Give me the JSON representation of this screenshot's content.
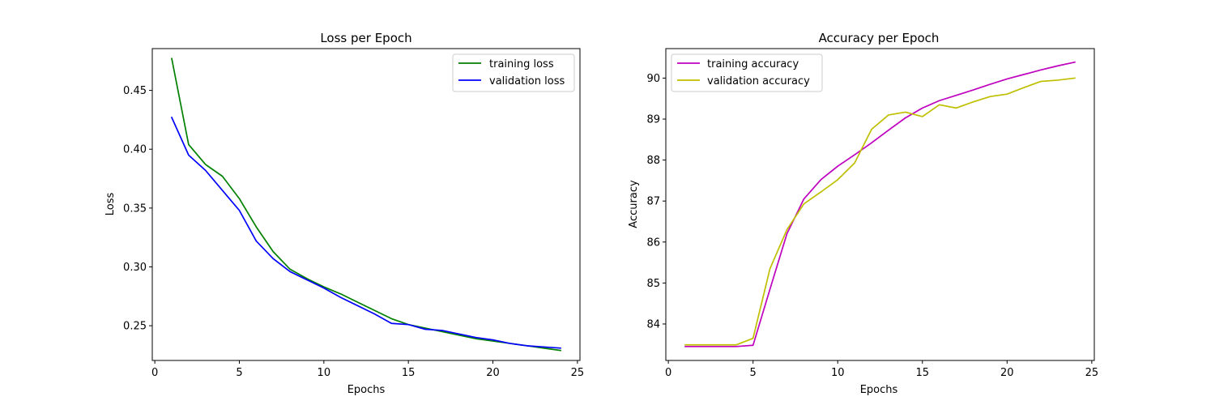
{
  "chart_data": [
    {
      "type": "line",
      "title": "Loss per Epoch",
      "xlabel": "Epochs",
      "ylabel": "Loss",
      "xlim": [
        -0.15,
        25.15
      ],
      "ylim": [
        0.2205,
        0.4855
      ],
      "xticks": [
        0,
        5,
        10,
        15,
        20,
        25
      ],
      "yticks": [
        0.25,
        0.3,
        0.35,
        0.4,
        0.45
      ],
      "yticks_labels": [
        "0.25",
        "0.30",
        "0.35",
        "0.40",
        "0.45"
      ],
      "grid": false,
      "legend_position": "top-right",
      "x": [
        1,
        2,
        3,
        4,
        5,
        6,
        7,
        8,
        9,
        10,
        11,
        12,
        13,
        14,
        15,
        16,
        17,
        18,
        19,
        20,
        21,
        22,
        23,
        24
      ],
      "series": [
        {
          "name": "training loss",
          "color": "#008000",
          "values": [
            0.477,
            0.404,
            0.387,
            0.377,
            0.358,
            0.334,
            0.313,
            0.298,
            0.29,
            0.283,
            0.277,
            0.27,
            0.263,
            0.256,
            0.251,
            0.248,
            0.245,
            0.242,
            0.239,
            0.237,
            0.235,
            0.233,
            0.231,
            0.229
          ]
        },
        {
          "name": "validation loss",
          "color": "#0000ff",
          "values": [
            0.427,
            0.395,
            0.382,
            0.365,
            0.348,
            0.322,
            0.307,
            0.296,
            0.289,
            0.282,
            0.274,
            0.267,
            0.26,
            0.252,
            0.251,
            0.247,
            0.246,
            0.243,
            0.24,
            0.238,
            0.235,
            0.233,
            0.232,
            0.231
          ]
        }
      ]
    },
    {
      "type": "line",
      "title": "Accuracy per Epoch",
      "xlabel": "Epochs",
      "ylabel": "Accuracy",
      "xlim": [
        -0.15,
        25.15
      ],
      "ylim": [
        83.11,
        90.72
      ],
      "xticks": [
        0,
        5,
        10,
        15,
        20,
        25
      ],
      "yticks": [
        84,
        85,
        86,
        87,
        88,
        89,
        90
      ],
      "yticks_labels": [
        "84",
        "85",
        "86",
        "87",
        "88",
        "89",
        "90"
      ],
      "grid": false,
      "legend_position": "top-left",
      "x": [
        1,
        2,
        3,
        4,
        5,
        6,
        7,
        8,
        9,
        10,
        11,
        12,
        13,
        14,
        15,
        16,
        17,
        18,
        19,
        20,
        21,
        22,
        23,
        24
      ],
      "series": [
        {
          "name": "training accuracy",
          "color": "#bf00bf",
          "values": [
            83.45,
            83.45,
            83.45,
            83.45,
            83.48,
            84.85,
            86.2,
            87.05,
            87.52,
            87.85,
            88.13,
            88.42,
            88.73,
            89.03,
            89.27,
            89.45,
            89.58,
            89.71,
            89.85,
            89.98,
            90.09,
            90.2,
            90.3,
            90.39
          ]
        },
        {
          "name": "validation accuracy",
          "color": "#bfbf00",
          "values": [
            83.49,
            83.49,
            83.49,
            83.49,
            83.65,
            85.35,
            86.3,
            86.93,
            87.22,
            87.52,
            87.93,
            88.75,
            89.1,
            89.17,
            89.06,
            89.35,
            89.27,
            89.42,
            89.55,
            89.61,
            89.77,
            89.92,
            89.95,
            90.0
          ]
        }
      ]
    }
  ]
}
